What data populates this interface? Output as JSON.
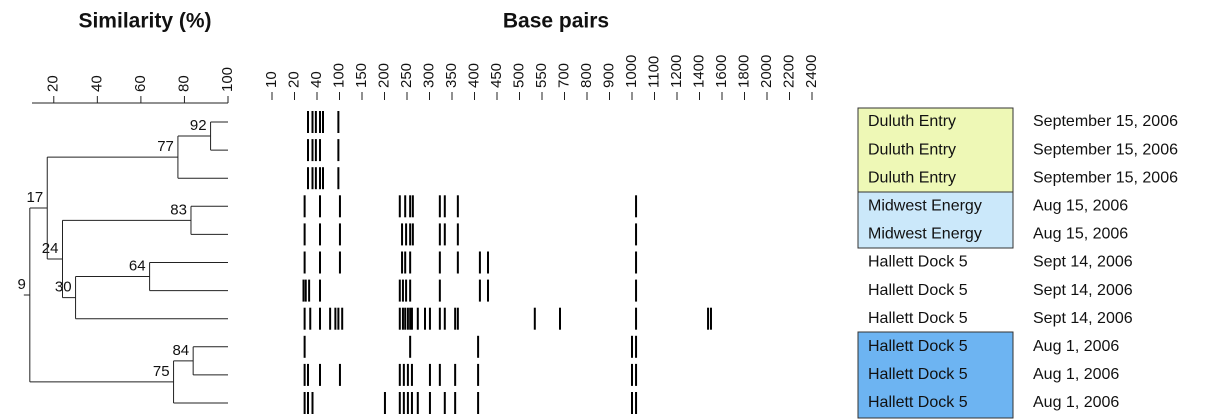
{
  "similarity_axis": {
    "title": "Similarity (%)",
    "lim": [
      10,
      100
    ],
    "ticks": [
      20,
      40,
      60,
      80,
      100
    ]
  },
  "bp_axis": {
    "title": "Base pairs",
    "ticks": [
      10,
      20,
      40,
      100,
      150,
      200,
      250,
      300,
      350,
      400,
      450,
      500,
      550,
      700,
      800,
      900,
      1000,
      1100,
      1200,
      1400,
      1600,
      1800,
      2000,
      2200,
      2400
    ]
  },
  "tree": {
    "similarity": 9,
    "children": [
      {
        "similarity": 17,
        "children": [
          {
            "similarity": 77,
            "children": [
              {
                "similarity": 92,
                "children": [
                  {
                    "site": "Duluth Entry",
                    "date": "September 15, 2006",
                    "bands": [
                      32,
                      36,
                      39,
                      48,
                      56,
                      97
                    ]
                  },
                  {
                    "site": "Duluth Entry",
                    "date": "September 15, 2006",
                    "bands": [
                      32,
                      36,
                      39,
                      48,
                      97
                    ]
                  }
                ]
              },
              {
                "site": "Duluth Entry",
                "date": "September 15, 2006",
                "bands": [
                  32,
                  36,
                  39,
                  48,
                  56,
                  97
                ]
              }
            ]
          },
          {
            "similarity": 24,
            "children": [
              {
                "similarity": 83,
                "children": [
                  {
                    "site": "Midwest Energy",
                    "date": "Aug 15, 2006",
                    "bands": [
                      29,
                      48,
                      101,
                      234,
                      246,
                      257,
                      263,
                      323,
                      334,
                      363,
                      1018
                    ]
                  },
                  {
                    "site": "Midwest Energy",
                    "date": "Aug 15, 2006",
                    "bands": [
                      29,
                      48,
                      101,
                      239,
                      248,
                      257,
                      263,
                      323,
                      334,
                      363,
                      1018
                    ]
                  }
                ]
              },
              {
                "similarity": 30,
                "children": [
                  {
                    "similarity": 64,
                    "children": [
                      {
                        "site": "Hallett Dock 5",
                        "date": "Sept 14, 2006",
                        "bands": [
                          29,
                          48,
                          101,
                          239,
                          246,
                          257,
                          323,
                          363,
                          412,
                          430,
                          1018
                        ]
                      },
                      {
                        "site": "Hallett Dock 5",
                        "date": "Sept 14, 2006",
                        "bands": [
                          28,
                          30,
                          33,
                          48,
                          234,
                          241,
                          248,
                          257,
                          323,
                          412,
                          430,
                          1018
                        ]
                      }
                    ]
                  },
                  {
                    "site": "Hallett Dock 5",
                    "date": "Sept 14, 2006",
                    "bands": [
                      29,
                      34,
                      48,
                      75,
                      89,
                      97,
                      106,
                      234,
                      241,
                      246,
                      252,
                      257,
                      261,
                      274,
                      290,
                      301,
                      323,
                      334,
                      357,
                      363,
                      534,
                      670,
                      1018,
                      1476,
                      1502
                    ]
                  }
                ]
              }
            ]
          }
        ]
      },
      {
        "similarity": 75,
        "children": [
          {
            "similarity": 84,
            "children": [
              {
                "site": "Hallett Dock 5",
                "date": "Aug 1, 2006",
                "bands": [
                  29,
                  257,
                  408,
                  1000,
                  1018
                ]
              },
              {
                "site": "Hallett Dock 5",
                "date": "Aug 1, 2006",
                "bands": [
                  29,
                  32,
                  48,
                  101,
                  234,
                  243,
                  252,
                  261,
                  301,
                  323,
                  357,
                  408,
                  1000,
                  1018
                ]
              }
            ]
          },
          {
            "site": "Hallett Dock 5",
            "date": "Aug 1, 2006",
            "bands": [
              29,
              32,
              36,
              201,
              234,
              243,
              252,
              261,
              274,
              301,
              334,
              357,
              408,
              1000,
              1018
            ]
          }
        ]
      }
    ]
  }
}
